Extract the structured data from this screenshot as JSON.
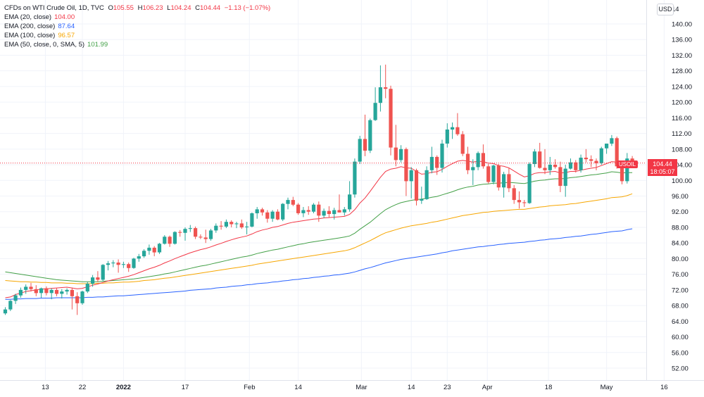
{
  "header": {
    "symbol_title": "CFDs on WTI Crude Oil, 1D, TVC",
    "ohlc": {
      "o_label": "O",
      "o": "105.55",
      "h_label": "H",
      "h": "106.23",
      "l_label": "L",
      "l": "104.24",
      "c_label": "C",
      "c": "104.44",
      "change": "−1.13 (−1.07%)"
    }
  },
  "indicators": [
    {
      "label": "EMA (20, close)",
      "value": "104.00",
      "color": "#f23645"
    },
    {
      "label": "EMA (200, close)",
      "value": "87.64",
      "color": "#2962ff"
    },
    {
      "label": "EMA (100, close)",
      "value": "96.57",
      "color": "#f7a600"
    },
    {
      "label": "EMA (50, close, 0, SMA, 5)",
      "value": "101.99",
      "color": "#43a047"
    }
  ],
  "currency_badge": "USD",
  "price_label": {
    "symbol": "USOIL",
    "price": "104.44",
    "countdown": "18:05:07",
    "color": "#f23645"
  },
  "chart_data": {
    "type": "candlestick",
    "y_axis": {
      "min": 50,
      "max": 142,
      "ticks": [
        52,
        56,
        60,
        64,
        68,
        72,
        76,
        80,
        84,
        88,
        92,
        96,
        100,
        104,
        108,
        112,
        116,
        120,
        124,
        128,
        132,
        136,
        140
      ]
    },
    "y_tick_labels": [
      "52.00",
      "56.00",
      "60.00",
      "64.00",
      "68.00",
      "72.00",
      "76.00",
      "80.00",
      "84.00",
      "88.00",
      "92.00",
      "96.00",
      "100.00",
      "104.00",
      "108.00",
      "112.00",
      "116.00",
      "120.00",
      "124.00",
      "128.00",
      "132.00",
      "136.00",
      "140.00"
    ],
    "y_top_partial_label": "14",
    "x_axis_labels": [
      {
        "label": "13",
        "index": 7.8,
        "bold": false
      },
      {
        "label": "22",
        "index": 15,
        "bold": false
      },
      {
        "label": "2022",
        "index": 23,
        "bold": true
      },
      {
        "label": "17",
        "index": 35,
        "bold": false
      },
      {
        "label": "Feb",
        "index": 47.5,
        "bold": false
      },
      {
        "label": "14",
        "index": 57,
        "bold": false
      },
      {
        "label": "Mar",
        "index": 69.3,
        "bold": false
      },
      {
        "label": "14",
        "index": 79,
        "bold": false
      },
      {
        "label": "23",
        "index": 86,
        "bold": false
      },
      {
        "label": "Apr",
        "index": 93.8,
        "bold": false
      },
      {
        "label": "18",
        "index": 105.7,
        "bold": false
      },
      {
        "label": "May",
        "index": 117,
        "bold": false
      },
      {
        "label": "16",
        "index": 128.2,
        "bold": false
      }
    ],
    "last_price": 104.44,
    "colors": {
      "up": "#26a69a",
      "down": "#ef5350",
      "ema20": "#f23645",
      "ema50": "#43a047",
      "ema100": "#f7a600",
      "ema200": "#2962ff"
    },
    "candles": [
      [
        66.0,
        67.6,
        65.6,
        67.0
      ],
      [
        67.0,
        69.4,
        66.6,
        69.2
      ],
      [
        69.2,
        71.0,
        68.4,
        70.6
      ],
      [
        70.6,
        72.6,
        70.0,
        72.0
      ],
      [
        72.0,
        73.4,
        71.0,
        72.8
      ],
      [
        72.8,
        73.8,
        71.6,
        72.2
      ],
      [
        72.2,
        73.2,
        70.4,
        71.2
      ],
      [
        71.2,
        72.6,
        70.0,
        72.4
      ],
      [
        72.4,
        72.9,
        70.6,
        71.2
      ],
      [
        71.2,
        72.4,
        69.6,
        72.0
      ],
      [
        72.0,
        72.5,
        70.4,
        71.0
      ],
      [
        71.0,
        72.2,
        69.8,
        71.6
      ],
      [
        71.6,
        72.4,
        70.8,
        72.0
      ],
      [
        72.0,
        72.6,
        67.0,
        70.4
      ],
      [
        70.4,
        71.4,
        65.6,
        68.6
      ],
      [
        68.6,
        71.8,
        68.2,
        71.6
      ],
      [
        71.6,
        74.0,
        71.2,
        73.6
      ],
      [
        73.6,
        75.8,
        72.8,
        75.2
      ],
      [
        75.2,
        76.8,
        74.0,
        74.6
      ],
      [
        74.6,
        78.6,
        74.2,
        78.4
      ],
      [
        78.4,
        79.4,
        77.0,
        78.8
      ],
      [
        78.8,
        79.6,
        77.8,
        79.0
      ],
      [
        79.0,
        79.8,
        76.4,
        78.4
      ],
      [
        78.4,
        79.2,
        77.6,
        78.6
      ],
      [
        78.6,
        79.0,
        76.6,
        77.6
      ],
      [
        77.6,
        80.2,
        77.4,
        80.0
      ],
      [
        80.0,
        81.2,
        79.2,
        80.6
      ],
      [
        80.6,
        82.4,
        80.2,
        82.0
      ],
      [
        82.0,
        83.6,
        81.0,
        82.8
      ],
      [
        82.8,
        83.2,
        80.6,
        81.6
      ],
      [
        81.6,
        84.0,
        81.2,
        83.8
      ],
      [
        83.8,
        86.0,
        83.6,
        85.6
      ],
      [
        85.6,
        85.9,
        83.0,
        83.8
      ],
      [
        83.8,
        87.0,
        83.6,
        86.8
      ],
      [
        86.8,
        87.3,
        85.6,
        86.6
      ],
      [
        86.6,
        88.0,
        84.6,
        87.6
      ],
      [
        87.6,
        88.6,
        86.8,
        87.8
      ],
      [
        87.8,
        88.2,
        85.0,
        85.6
      ],
      [
        85.6,
        86.2,
        85.0,
        85.4
      ],
      [
        85.4,
        87.4,
        84.0,
        85.0
      ],
      [
        85.0,
        87.6,
        84.6,
        87.2
      ],
      [
        87.2,
        89.0,
        86.6,
        88.4
      ],
      [
        88.4,
        89.6,
        87.4,
        88.2
      ],
      [
        88.2,
        90.0,
        87.8,
        89.4
      ],
      [
        89.4,
        89.8,
        88.0,
        88.8
      ],
      [
        88.8,
        89.4,
        87.8,
        89.0
      ],
      [
        89.0,
        90.0,
        87.6,
        88.0
      ],
      [
        88.0,
        89.4,
        86.2,
        88.2
      ],
      [
        88.2,
        91.8,
        88.0,
        91.6
      ],
      [
        91.6,
        93.2,
        90.2,
        92.6
      ],
      [
        92.6,
        93.0,
        91.0,
        91.8
      ],
      [
        91.8,
        92.4,
        89.2,
        90.2
      ],
      [
        90.2,
        92.4,
        89.4,
        92.0
      ],
      [
        92.0,
        92.6,
        89.8,
        90.0
      ],
      [
        90.0,
        94.2,
        89.6,
        94.0
      ],
      [
        94.0,
        95.6,
        92.6,
        95.0
      ],
      [
        95.0,
        95.8,
        93.4,
        93.8
      ],
      [
        93.8,
        94.2,
        91.2,
        91.6
      ],
      [
        91.6,
        93.2,
        90.6,
        92.4
      ],
      [
        92.4,
        93.4,
        91.2,
        92.0
      ],
      [
        92.0,
        94.2,
        91.6,
        93.8
      ],
      [
        93.8,
        94.6,
        89.4,
        91.0
      ],
      [
        91.0,
        92.8,
        90.4,
        92.2
      ],
      [
        92.2,
        93.4,
        90.6,
        91.4
      ],
      [
        91.4,
        93.0,
        90.0,
        92.4
      ],
      [
        92.4,
        96.4,
        91.8,
        91.8
      ],
      [
        91.8,
        93.2,
        91.0,
        92.6
      ],
      [
        92.6,
        99.8,
        92.0,
        96.4
      ],
      [
        96.4,
        105.6,
        95.6,
        104.8
      ],
      [
        104.8,
        111.4,
        104.2,
        110.6
      ],
      [
        110.6,
        116.8,
        106.2,
        107.6
      ],
      [
        107.6,
        115.8,
        107.0,
        115.4
      ],
      [
        115.4,
        123.8,
        115.2,
        119.8
      ],
      [
        119.8,
        129.4,
        117.6,
        123.8
      ],
      [
        123.8,
        129.6,
        121.0,
        123.4
      ],
      [
        123.4,
        124.2,
        106.4,
        108.4
      ],
      [
        108.4,
        114.2,
        103.6,
        105.2
      ],
      [
        105.2,
        109.0,
        104.6,
        108.0
      ],
      [
        108.0,
        108.4,
        96.0,
        99.8
      ],
      [
        99.8,
        103.4,
        95.4,
        102.6
      ],
      [
        102.6,
        103.0,
        93.6,
        94.8
      ],
      [
        94.8,
        98.4,
        94.0,
        95.2
      ],
      [
        95.2,
        103.6,
        95.0,
        102.6
      ],
      [
        102.6,
        108.6,
        101.8,
        106.0
      ],
      [
        106.0,
        106.4,
        101.4,
        103.2
      ],
      [
        103.2,
        110.4,
        102.0,
        109.4
      ],
      [
        109.4,
        114.6,
        108.4,
        113.0
      ],
      [
        113.0,
        114.8,
        110.6,
        113.6
      ],
      [
        113.6,
        117.2,
        111.4,
        111.8
      ],
      [
        111.8,
        112.6,
        106.2,
        106.8
      ],
      [
        106.8,
        108.6,
        101.6,
        102.6
      ],
      [
        102.6,
        105.4,
        98.8,
        103.4
      ],
      [
        103.4,
        107.4,
        102.6,
        107.0
      ],
      [
        107.0,
        109.2,
        103.0,
        103.6
      ],
      [
        103.6,
        104.2,
        99.2,
        99.6
      ],
      [
        99.6,
        104.0,
        99.0,
        103.8
      ],
      [
        103.8,
        104.2,
        97.4,
        98.2
      ],
      [
        98.2,
        102.2,
        95.6,
        101.6
      ],
      [
        101.6,
        103.2,
        97.0,
        98.0
      ],
      [
        98.0,
        98.8,
        94.0,
        95.0
      ],
      [
        95.0,
        97.2,
        92.8,
        94.4
      ],
      [
        94.4,
        95.0,
        93.2,
        94.2
      ],
      [
        94.2,
        104.6,
        94.0,
        104.2
      ],
      [
        104.2,
        108.0,
        103.4,
        107.4
      ],
      [
        107.4,
        109.6,
        103.0,
        103.2
      ],
      [
        103.2,
        108.0,
        101.6,
        102.6
      ],
      [
        102.6,
        106.0,
        101.4,
        104.0
      ],
      [
        104.0,
        105.4,
        103.0,
        103.4
      ],
      [
        103.4,
        104.8,
        97.0,
        98.6
      ],
      [
        98.6,
        104.0,
        95.8,
        103.0
      ],
      [
        103.0,
        105.6,
        102.8,
        104.6
      ],
      [
        104.6,
        105.2,
        102.0,
        102.6
      ],
      [
        102.6,
        106.6,
        102.0,
        105.8
      ],
      [
        105.8,
        108.0,
        104.6,
        105.4
      ],
      [
        105.4,
        106.4,
        103.4,
        105.0
      ],
      [
        105.0,
        105.6,
        102.6,
        104.4
      ],
      [
        104.4,
        108.6,
        104.0,
        108.2
      ],
      [
        108.2,
        109.4,
        106.8,
        109.4
      ],
      [
        109.4,
        111.6,
        108.8,
        110.8
      ],
      [
        110.8,
        111.2,
        103.0,
        103.6
      ],
      [
        103.6,
        104.6,
        99.0,
        99.8
      ],
      [
        99.8,
        107.0,
        99.2,
        105.6
      ],
      [
        105.6,
        106.23,
        104.24,
        104.44
      ]
    ],
    "ema20": [
      70,
      70.2,
      70.8,
      71.2,
      71.6,
      71.8,
      72,
      72.2,
      72.3,
      72.4,
      72.5,
      72.6,
      72.7,
      72.5,
      72.3,
      72.4,
      72.8,
      73.2,
      73.5,
      73.9,
      74.3,
      74.6,
      74.9,
      75.2,
      75.5,
      75.9,
      76.4,
      76.9,
      77.4,
      77.8,
      78.3,
      78.9,
      79.4,
      80,
      80.5,
      81,
      81.5,
      81.9,
      82.3,
      82.6,
      83,
      83.5,
      83.9,
      84.4,
      84.8,
      85.2,
      85.5,
      85.8,
      86.3,
      86.9,
      87.3,
      87.6,
      88,
      88.2,
      88.6,
      89,
      89.3,
      89.5,
      89.7,
      89.9,
      90.1,
      90.2,
      90.4,
      90.5,
      90.6,
      90.7,
      90.8,
      91.3,
      92.5,
      94.2,
      95.5,
      97.2,
      99,
      100.8,
      102.3,
      102.9,
      103.1,
      103.5,
      103.2,
      103.1,
      102.3,
      101.6,
      101.7,
      102.1,
      102.2,
      102.8,
      103.6,
      104.3,
      104.9,
      105.1,
      104.9,
      104.7,
      104.9,
      104.8,
      104.4,
      104.3,
      103.8,
      103.6,
      103.2,
      102.4,
      101.6,
      100.9,
      101.2,
      101.8,
      102,
      102,
      102.2,
      102.3,
      101.9,
      102,
      102.3,
      102.3,
      102.6,
      102.9,
      103.1,
      103.3,
      103.8,
      104.3,
      104.8,
      104.7,
      104.2,
      104.3,
      104.0
    ],
    "ema50": [
      76.6,
      76.4,
      76.2,
      76,
      75.8,
      75.6,
      75.4,
      75.2,
      75.0,
      74.8,
      74.6,
      74.5,
      74.4,
      74.3,
      74.2,
      74.1,
      74.1,
      74.1,
      74.1,
      74.2,
      74.3,
      74.4,
      74.5,
      74.6,
      74.7,
      74.8,
      75,
      75.2,
      75.4,
      75.6,
      75.8,
      76.1,
      76.3,
      76.6,
      76.9,
      77.2,
      77.5,
      77.8,
      78.1,
      78.3,
      78.6,
      78.9,
      79.2,
      79.5,
      79.8,
      80.1,
      80.4,
      80.6,
      80.9,
      81.3,
      81.6,
      81.9,
      82.2,
      82.4,
      82.7,
      83,
      83.3,
      83.6,
      83.8,
      84.1,
      84.3,
      84.5,
      84.7,
      84.9,
      85.1,
      85.3,
      85.5,
      85.8,
      86.5,
      87.5,
      88.4,
      89.3,
      90.4,
      91.5,
      92.5,
      93.2,
      93.8,
      94.3,
      94.6,
      94.9,
      95.1,
      95.2,
      95.4,
      95.7,
      95.9,
      96.3,
      96.7,
      97.1,
      97.6,
      98.0,
      98.3,
      98.5,
      98.8,
      99.0,
      99.1,
      99.3,
      99.3,
      99.4,
      99.5,
      99.4,
      99.3,
      99.2,
      99.5,
      99.8,
      100.0,
      100.1,
      100.3,
      100.4,
      100.4,
      100.5,
      100.7,
      100.8,
      101.0,
      101.2,
      101.4,
      101.5,
      101.7,
      101.9,
      102.2,
      102.1,
      101.9,
      102.0,
      101.99
    ],
    "ema100": [
      74.4,
      74.3,
      74.2,
      74.1,
      74.1,
      74.0,
      74.0,
      73.9,
      73.9,
      73.8,
      73.8,
      73.8,
      73.7,
      73.7,
      73.6,
      73.6,
      73.6,
      73.6,
      73.7,
      73.7,
      73.8,
      73.8,
      73.9,
      74.0,
      74.0,
      74.1,
      74.2,
      74.4,
      74.5,
      74.6,
      74.8,
      75.0,
      75.1,
      75.3,
      75.5,
      75.7,
      75.9,
      76.1,
      76.3,
      76.5,
      76.7,
      76.9,
      77.1,
      77.3,
      77.5,
      77.7,
      77.9,
      78.1,
      78.3,
      78.6,
      78.8,
      79.0,
      79.2,
      79.4,
      79.6,
      79.8,
      80.0,
      80.2,
      80.4,
      80.6,
      80.8,
      81.0,
      81.2,
      81.4,
      81.6,
      81.8,
      82.0,
      82.3,
      82.8,
      83.4,
      84.0,
      84.6,
      85.3,
      86.0,
      86.6,
      87.0,
      87.4,
      87.8,
      88.1,
      88.4,
      88.6,
      88.8,
      89.0,
      89.3,
      89.5,
      89.8,
      90.1,
      90.4,
      90.7,
      91.0,
      91.2,
      91.4,
      91.6,
      91.8,
      91.9,
      92.1,
      92.2,
      92.3,
      92.4,
      92.5,
      92.6,
      92.6,
      92.8,
      93.0,
      93.2,
      93.3,
      93.5,
      93.6,
      93.7,
      93.8,
      94.0,
      94.1,
      94.3,
      94.5,
      94.7,
      94.9,
      95.1,
      95.3,
      95.6,
      95.7,
      95.8,
      96.1,
      96.57
    ],
    "ema200": [
      69.6,
      69.6,
      69.7,
      69.7,
      69.8,
      69.8,
      69.8,
      69.9,
      69.9,
      69.9,
      70.0,
      70.0,
      70.0,
      70.0,
      70.0,
      70.0,
      70.1,
      70.1,
      70.2,
      70.2,
      70.3,
      70.4,
      70.5,
      70.5,
      70.6,
      70.7,
      70.8,
      70.9,
      71.0,
      71.1,
      71.2,
      71.3,
      71.4,
      71.5,
      71.6,
      71.7,
      71.9,
      72.0,
      72.1,
      72.2,
      72.3,
      72.5,
      72.6,
      72.7,
      72.9,
      73.0,
      73.1,
      73.3,
      73.4,
      73.6,
      73.7,
      73.8,
      74.0,
      74.1,
      74.3,
      74.4,
      74.6,
      74.7,
      74.9,
      75.0,
      75.2,
      75.3,
      75.5,
      75.6,
      75.8,
      75.9,
      76.1,
      76.3,
      76.6,
      77.0,
      77.4,
      77.7,
      78.1,
      78.5,
      78.9,
      79.2,
      79.5,
      79.8,
      80.0,
      80.2,
      80.4,
      80.6,
      80.8,
      81.0,
      81.2,
      81.5,
      81.7,
      82.0,
      82.2,
      82.4,
      82.6,
      82.8,
      83.0,
      83.1,
      83.3,
      83.4,
      83.6,
      83.7,
      83.9,
      84.0,
      84.1,
      84.2,
      84.4,
      84.5,
      84.7,
      84.8,
      85.0,
      85.1,
      85.2,
      85.4,
      85.5,
      85.7,
      85.8,
      86.0,
      86.2,
      86.3,
      86.5,
      86.7,
      86.9,
      87.0,
      87.1,
      87.4,
      87.64
    ]
  }
}
